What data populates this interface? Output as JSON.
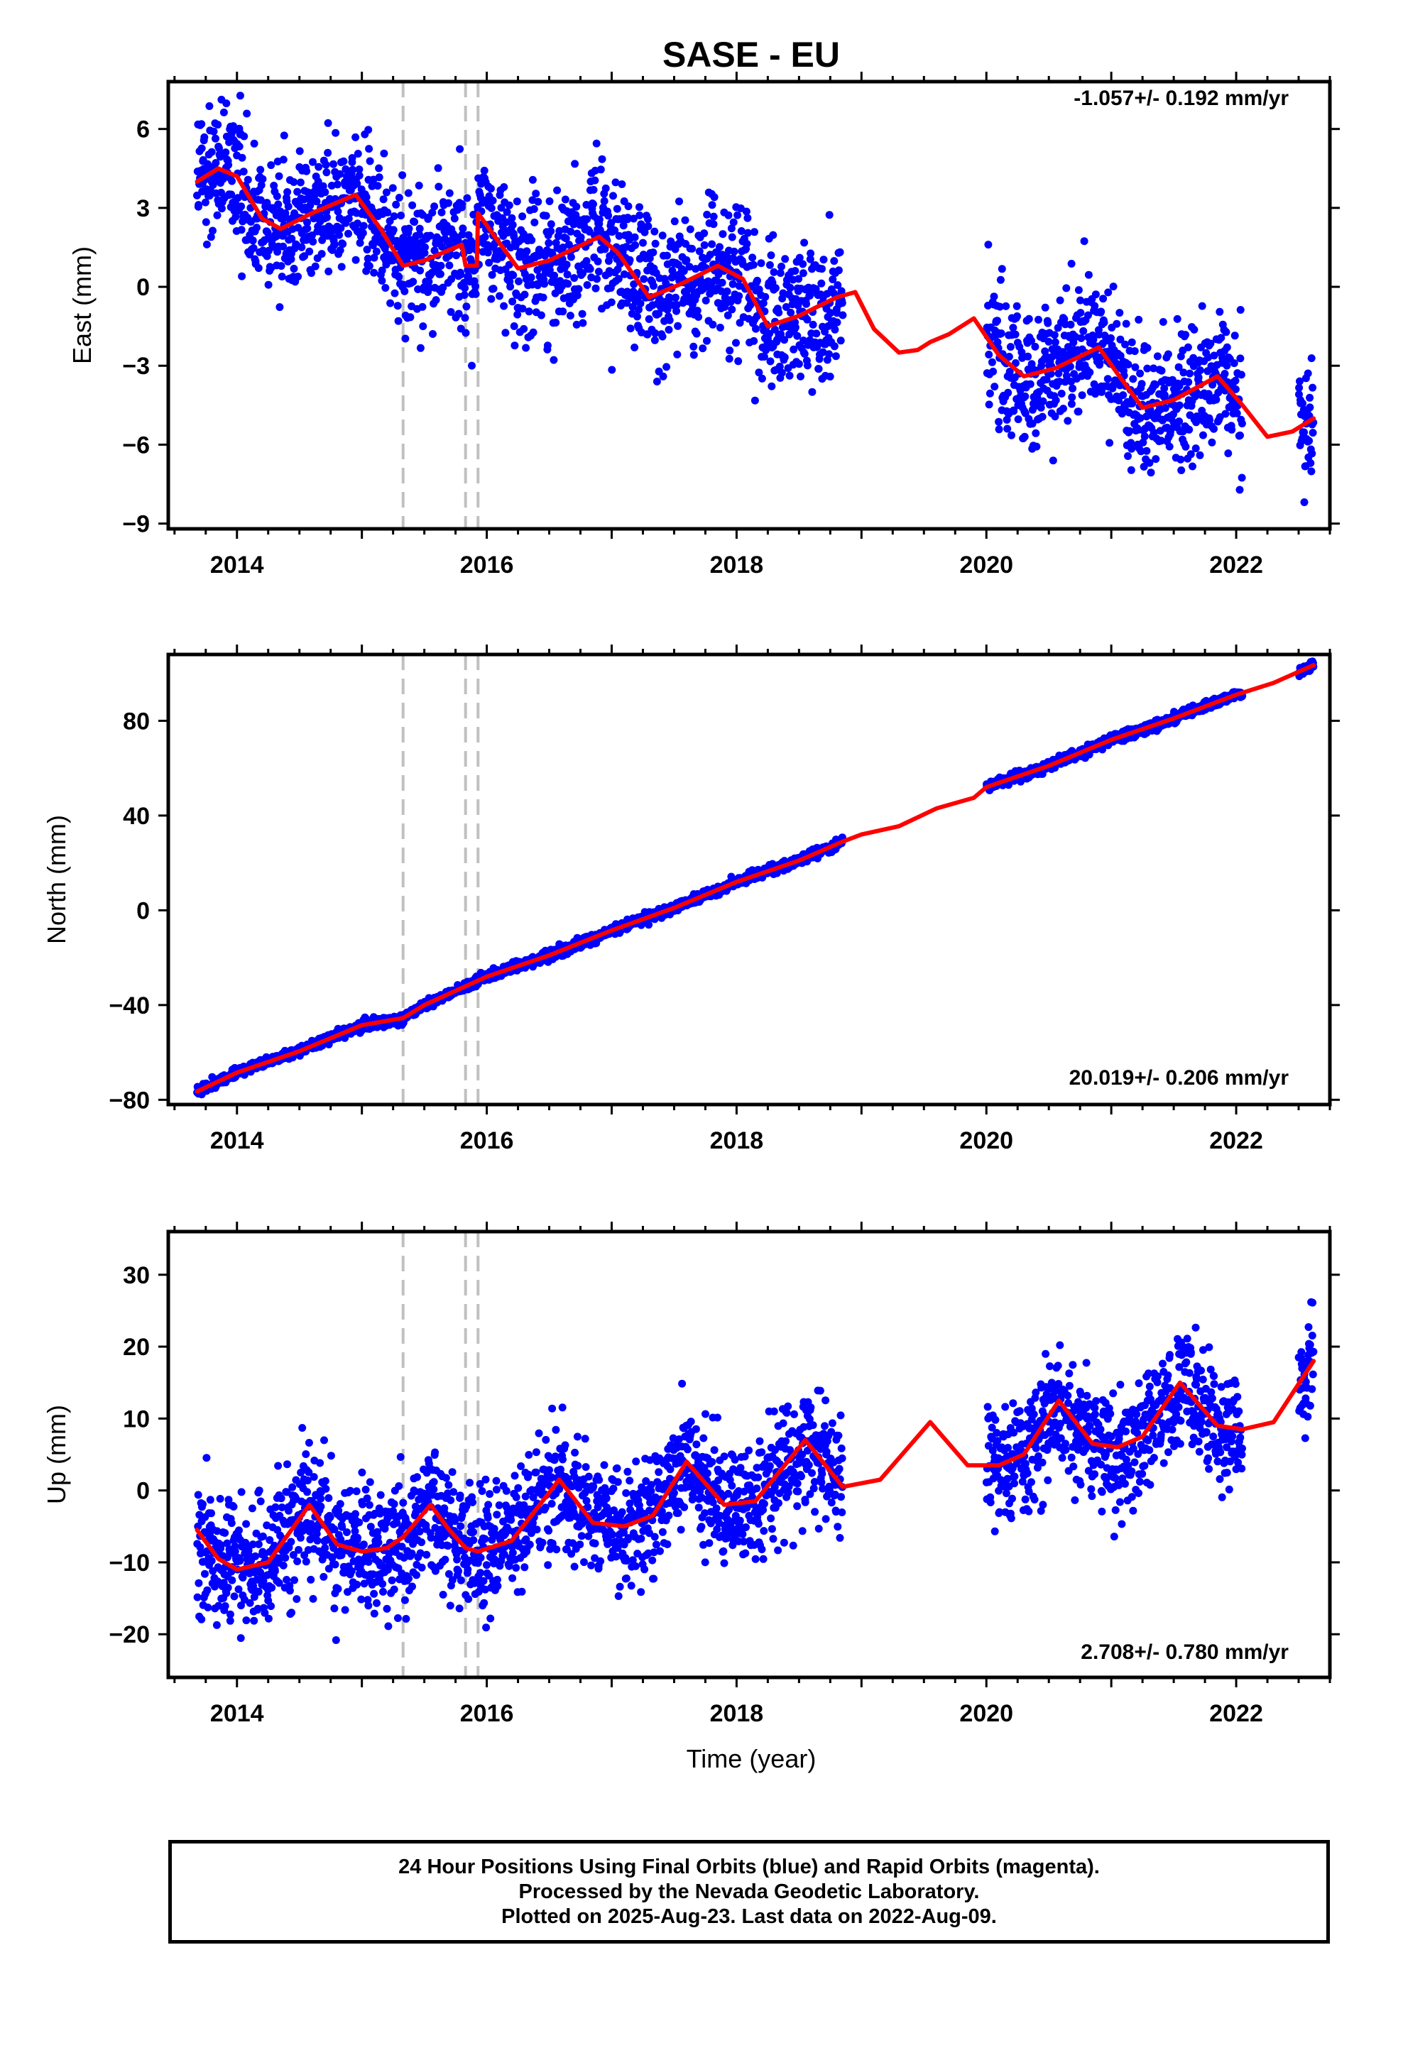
{
  "title": "SASE - EU",
  "xlabel": "Time (year)",
  "footer": {
    "line1": "24 Hour Positions Using Final Orbits (blue) and Rapid Orbits (magenta).",
    "line2": "Processed by the Nevada Geodetic Laboratory.",
    "line3": "Plotted on 2025-Aug-23. Last data on 2022-Aug-09."
  },
  "colors": {
    "data": "#0000ff",
    "model": "#ff0000",
    "steps": "#c0c0c0",
    "frame": "#000000"
  },
  "chart_data": [
    {
      "type": "scatter",
      "component": "east",
      "ylabel": "East (mm)",
      "rate": "-1.057+/- 0.192 mm/yr",
      "xlim": [
        2013.45,
        2022.75
      ],
      "ylim": [
        -9.2,
        7.8
      ],
      "xticks": [
        2014,
        2016,
        2018,
        2020,
        2022
      ],
      "yticks": [
        -9,
        -6,
        -3,
        0,
        3,
        6
      ],
      "ytick_labels": [
        "−9",
        "−6",
        "−3",
        "0",
        "3",
        "6"
      ],
      "step_lines_x": [
        2015.33,
        2015.83,
        2015.93
      ],
      "data_segments": [
        [
          2013.68,
          2018.85
        ],
        [
          2020.0,
          2022.05
        ],
        [
          2022.5,
          2022.62
        ]
      ],
      "points_per_year": 330,
      "scatter_sd": 1.3,
      "model": [
        [
          2013.68,
          4.0
        ],
        [
          2013.85,
          4.5
        ],
        [
          2014.0,
          4.2
        ],
        [
          2014.2,
          2.6
        ],
        [
          2014.35,
          2.2
        ],
        [
          2014.6,
          2.8
        ],
        [
          2014.95,
          3.5
        ],
        [
          2015.15,
          2.2
        ],
        [
          2015.33,
          0.8
        ],
        [
          2015.5,
          1.0
        ],
        [
          2015.8,
          1.6
        ],
        [
          2015.83,
          0.8
        ],
        [
          2015.92,
          0.8
        ],
        [
          2015.93,
          2.8
        ],
        [
          2016.05,
          2.0
        ],
        [
          2016.25,
          0.7
        ],
        [
          2016.5,
          1.0
        ],
        [
          2016.9,
          1.9
        ],
        [
          2017.05,
          1.3
        ],
        [
          2017.3,
          -0.4
        ],
        [
          2017.55,
          0.1
        ],
        [
          2017.85,
          0.8
        ],
        [
          2018.05,
          0.3
        ],
        [
          2018.25,
          -1.5
        ],
        [
          2018.5,
          -1.1
        ],
        [
          2018.8,
          -0.4
        ],
        [
          2018.95,
          -0.2
        ],
        [
          2019.1,
          -1.6
        ],
        [
          2019.3,
          -2.5
        ],
        [
          2019.45,
          -2.4
        ],
        [
          2019.55,
          -2.1
        ],
        [
          2019.7,
          -1.8
        ],
        [
          2019.9,
          -1.2
        ],
        [
          2020.1,
          -2.6
        ],
        [
          2020.3,
          -3.4
        ],
        [
          2020.55,
          -3.1
        ],
        [
          2020.9,
          -2.3
        ],
        [
          2021.05,
          -3.3
        ],
        [
          2021.25,
          -4.6
        ],
        [
          2021.5,
          -4.3
        ],
        [
          2021.85,
          -3.4
        ],
        [
          2022.05,
          -4.5
        ],
        [
          2022.25,
          -5.7
        ],
        [
          2022.45,
          -5.5
        ],
        [
          2022.62,
          -5.0
        ]
      ]
    },
    {
      "type": "scatter",
      "component": "north",
      "ylabel": "North (mm)",
      "rate": "20.019+/- 0.206 mm/yr",
      "xlim": [
        2013.45,
        2022.75
      ],
      "ylim": [
        -82,
        108
      ],
      "xticks": [
        2014,
        2016,
        2018,
        2020,
        2022
      ],
      "yticks": [
        -80,
        -40,
        0,
        40,
        80
      ],
      "ytick_labels": [
        "−80",
        "−40",
        "0",
        "40",
        "80"
      ],
      "step_lines_x": [
        2015.33,
        2015.83,
        2015.93
      ],
      "data_segments": [
        [
          2013.68,
          2018.85
        ],
        [
          2020.0,
          2022.05
        ],
        [
          2022.5,
          2022.62
        ]
      ],
      "points_per_year": 330,
      "scatter_sd": 1.0,
      "model": [
        [
          2013.68,
          -76.5
        ],
        [
          2014.0,
          -68.5
        ],
        [
          2014.5,
          -59.5
        ],
        [
          2015.0,
          -48.5
        ],
        [
          2015.33,
          -45.5
        ],
        [
          2015.5,
          -40.0
        ],
        [
          2016.0,
          -28.0
        ],
        [
          2016.5,
          -19.0
        ],
        [
          2017.0,
          -8.5
        ],
        [
          2017.5,
          1.0
        ],
        [
          2018.0,
          12.0
        ],
        [
          2018.5,
          21.0
        ],
        [
          2018.85,
          29.0
        ],
        [
          2019.0,
          32.0
        ],
        [
          2019.3,
          35.5
        ],
        [
          2019.6,
          43.0
        ],
        [
          2019.9,
          47.5
        ],
        [
          2020.0,
          52.0
        ],
        [
          2020.5,
          61.0
        ],
        [
          2021.0,
          72.0
        ],
        [
          2021.5,
          81.0
        ],
        [
          2022.0,
          91.0
        ],
        [
          2022.3,
          96.0
        ],
        [
          2022.62,
          103.5
        ]
      ]
    },
    {
      "type": "scatter",
      "component": "up",
      "ylabel": "Up (mm)",
      "rate": "2.708+/- 0.780 mm/yr",
      "xlim": [
        2013.45,
        2022.75
      ],
      "ylim": [
        -26,
        36
      ],
      "xticks": [
        2014,
        2016,
        2018,
        2020,
        2022
      ],
      "yticks": [
        -20,
        -10,
        0,
        10,
        20,
        30
      ],
      "ytick_labels": [
        "−20",
        "−10",
        "0",
        "10",
        "20",
        "30"
      ],
      "step_lines_x": [
        2015.33,
        2015.83,
        2015.93
      ],
      "data_segments": [
        [
          2013.68,
          2018.85
        ],
        [
          2020.0,
          2022.05
        ],
        [
          2022.5,
          2022.62
        ]
      ],
      "points_per_year": 330,
      "scatter_sd": 4.3,
      "model": [
        [
          2013.68,
          -5.5
        ],
        [
          2013.85,
          -9.5
        ],
        [
          2014.0,
          -11.0
        ],
        [
          2014.25,
          -10.0
        ],
        [
          2014.58,
          -2.0
        ],
        [
          2014.8,
          -7.5
        ],
        [
          2015.0,
          -8.5
        ],
        [
          2015.2,
          -8.0
        ],
        [
          2015.33,
          -6.5
        ],
        [
          2015.55,
          -2.0
        ],
        [
          2015.7,
          -5.5
        ],
        [
          2015.83,
          -8.0
        ],
        [
          2015.93,
          -8.5
        ],
        [
          2016.2,
          -7.0
        ],
        [
          2016.58,
          1.5
        ],
        [
          2016.85,
          -4.5
        ],
        [
          2017.1,
          -5.0
        ],
        [
          2017.33,
          -3.5
        ],
        [
          2017.6,
          4.0
        ],
        [
          2017.9,
          -2.0
        ],
        [
          2018.15,
          -1.5
        ],
        [
          2018.55,
          7.0
        ],
        [
          2018.85,
          0.5
        ],
        [
          2019.15,
          1.5
        ],
        [
          2019.55,
          9.5
        ],
        [
          2019.85,
          3.5
        ],
        [
          2020.1,
          3.5
        ],
        [
          2020.3,
          5.0
        ],
        [
          2020.58,
          12.5
        ],
        [
          2020.85,
          6.5
        ],
        [
          2021.05,
          6.0
        ],
        [
          2021.25,
          7.5
        ],
        [
          2021.55,
          15.0
        ],
        [
          2021.85,
          9.0
        ],
        [
          2022.05,
          8.5
        ],
        [
          2022.3,
          9.5
        ],
        [
          2022.62,
          18.0
        ]
      ]
    }
  ]
}
